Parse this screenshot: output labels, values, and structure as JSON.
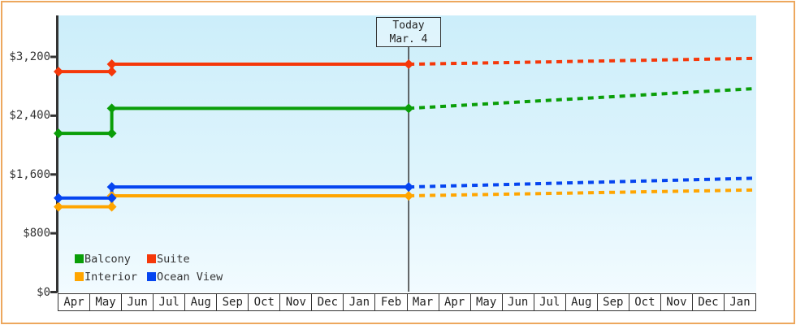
{
  "accent_colors": {
    "frame_border": "#eda75d",
    "axis": "#333333",
    "plot_bg_top": "#cceefa",
    "plot_bg_bottom": "#f2fbff"
  },
  "chart_data": {
    "type": "line",
    "x_categories": [
      "Apr",
      "May",
      "Jun",
      "Jul",
      "Aug",
      "Sep",
      "Oct",
      "Nov",
      "Dec",
      "Jan",
      "Feb",
      "Mar",
      "Apr",
      "May",
      "Jun",
      "Jul",
      "Aug",
      "Sep",
      "Oct",
      "Nov",
      "Dec",
      "Jan"
    ],
    "x_axis_months_total": 22,
    "y_ticks": [
      {
        "label": "$0",
        "value": 0
      },
      {
        "label": "$800",
        "value": 800
      },
      {
        "label": "$1,600",
        "value": 1600
      },
      {
        "label": "$2,400",
        "value": 2400
      },
      {
        "label": "$3,200",
        "value": 3200
      }
    ],
    "ylim": [
      0,
      3760
    ],
    "grid": false,
    "annotation": {
      "line1": "Today",
      "line2": "Mar. 4",
      "month_index": 11.04
    },
    "price_change_month_index": 1.68,
    "series": [
      {
        "name": "Balcony",
        "color": "#0a9e08",
        "solid": [
          [
            0,
            2160
          ],
          [
            1.68,
            2160
          ],
          [
            1.68,
            2500
          ],
          [
            11.04,
            2500
          ]
        ],
        "dotted": [
          [
            11.04,
            2500
          ],
          [
            22,
            2770
          ]
        ]
      },
      {
        "name": "Suite",
        "color": "#f5380a",
        "solid": [
          [
            0,
            3000
          ],
          [
            1.68,
            3000
          ],
          [
            1.68,
            3100
          ],
          [
            11.04,
            3100
          ]
        ],
        "dotted": [
          [
            11.04,
            3100
          ],
          [
            22,
            3180
          ]
        ]
      },
      {
        "name": "Interior",
        "color": "#ffa500",
        "solid": [
          [
            0,
            1160
          ],
          [
            1.68,
            1160
          ],
          [
            1.68,
            1310
          ],
          [
            11.04,
            1310
          ]
        ],
        "dotted": [
          [
            11.04,
            1310
          ],
          [
            22,
            1390
          ]
        ]
      },
      {
        "name": "Ocean View",
        "color": "#0545f0",
        "solid": [
          [
            0,
            1280
          ],
          [
            1.68,
            1280
          ],
          [
            1.68,
            1430
          ],
          [
            11.04,
            1430
          ]
        ],
        "dotted": [
          [
            11.04,
            1430
          ],
          [
            22,
            1550
          ]
        ]
      }
    ],
    "legend": {
      "position": "bottom-left",
      "items": [
        {
          "label": "Balcony",
          "color": "#0a9e08"
        },
        {
          "label": "Suite",
          "color": "#f5380a"
        },
        {
          "label": "Interior",
          "color": "#ffa500"
        },
        {
          "label": "Ocean View",
          "color": "#0545f0"
        }
      ]
    }
  }
}
